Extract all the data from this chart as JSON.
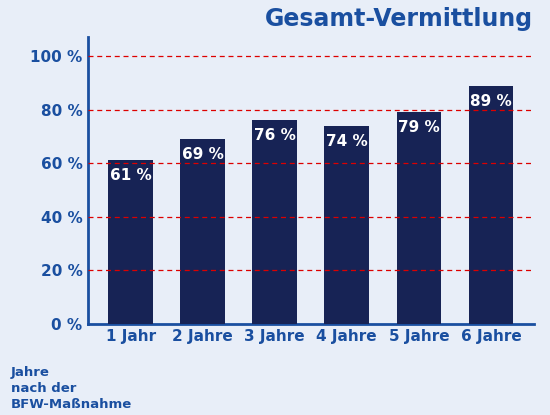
{
  "title": "Gesamt-Vermittlung",
  "categories": [
    "1 Jahr",
    "2 Jahre",
    "3 Jahre",
    "4 Jahre",
    "5 Jahre",
    "6 Jahre"
  ],
  "values": [
    61,
    69,
    76,
    74,
    79,
    89
  ],
  "bar_color": "#172355",
  "bar_label_color": "#ffffff",
  "bar_label_fontsize": 11,
  "title_color": "#1a4fa0",
  "title_fontsize": 17,
  "tick_label_color": "#1a4fa0",
  "tick_label_fontsize": 11,
  "xlabel_text": "Jahre\nnach der\nBFW-Maßnahme",
  "yticks": [
    0,
    20,
    40,
    60,
    80,
    100
  ],
  "ytick_labels": [
    "0 %",
    "20 %",
    "40 %",
    "60 %",
    "80 %",
    "100 %"
  ],
  "ylim": [
    0,
    107
  ],
  "grid_color": "#dd0000",
  "background_color": "#e8eef8",
  "spine_color": "#1a4fa0",
  "spine_linewidth": 2.0
}
